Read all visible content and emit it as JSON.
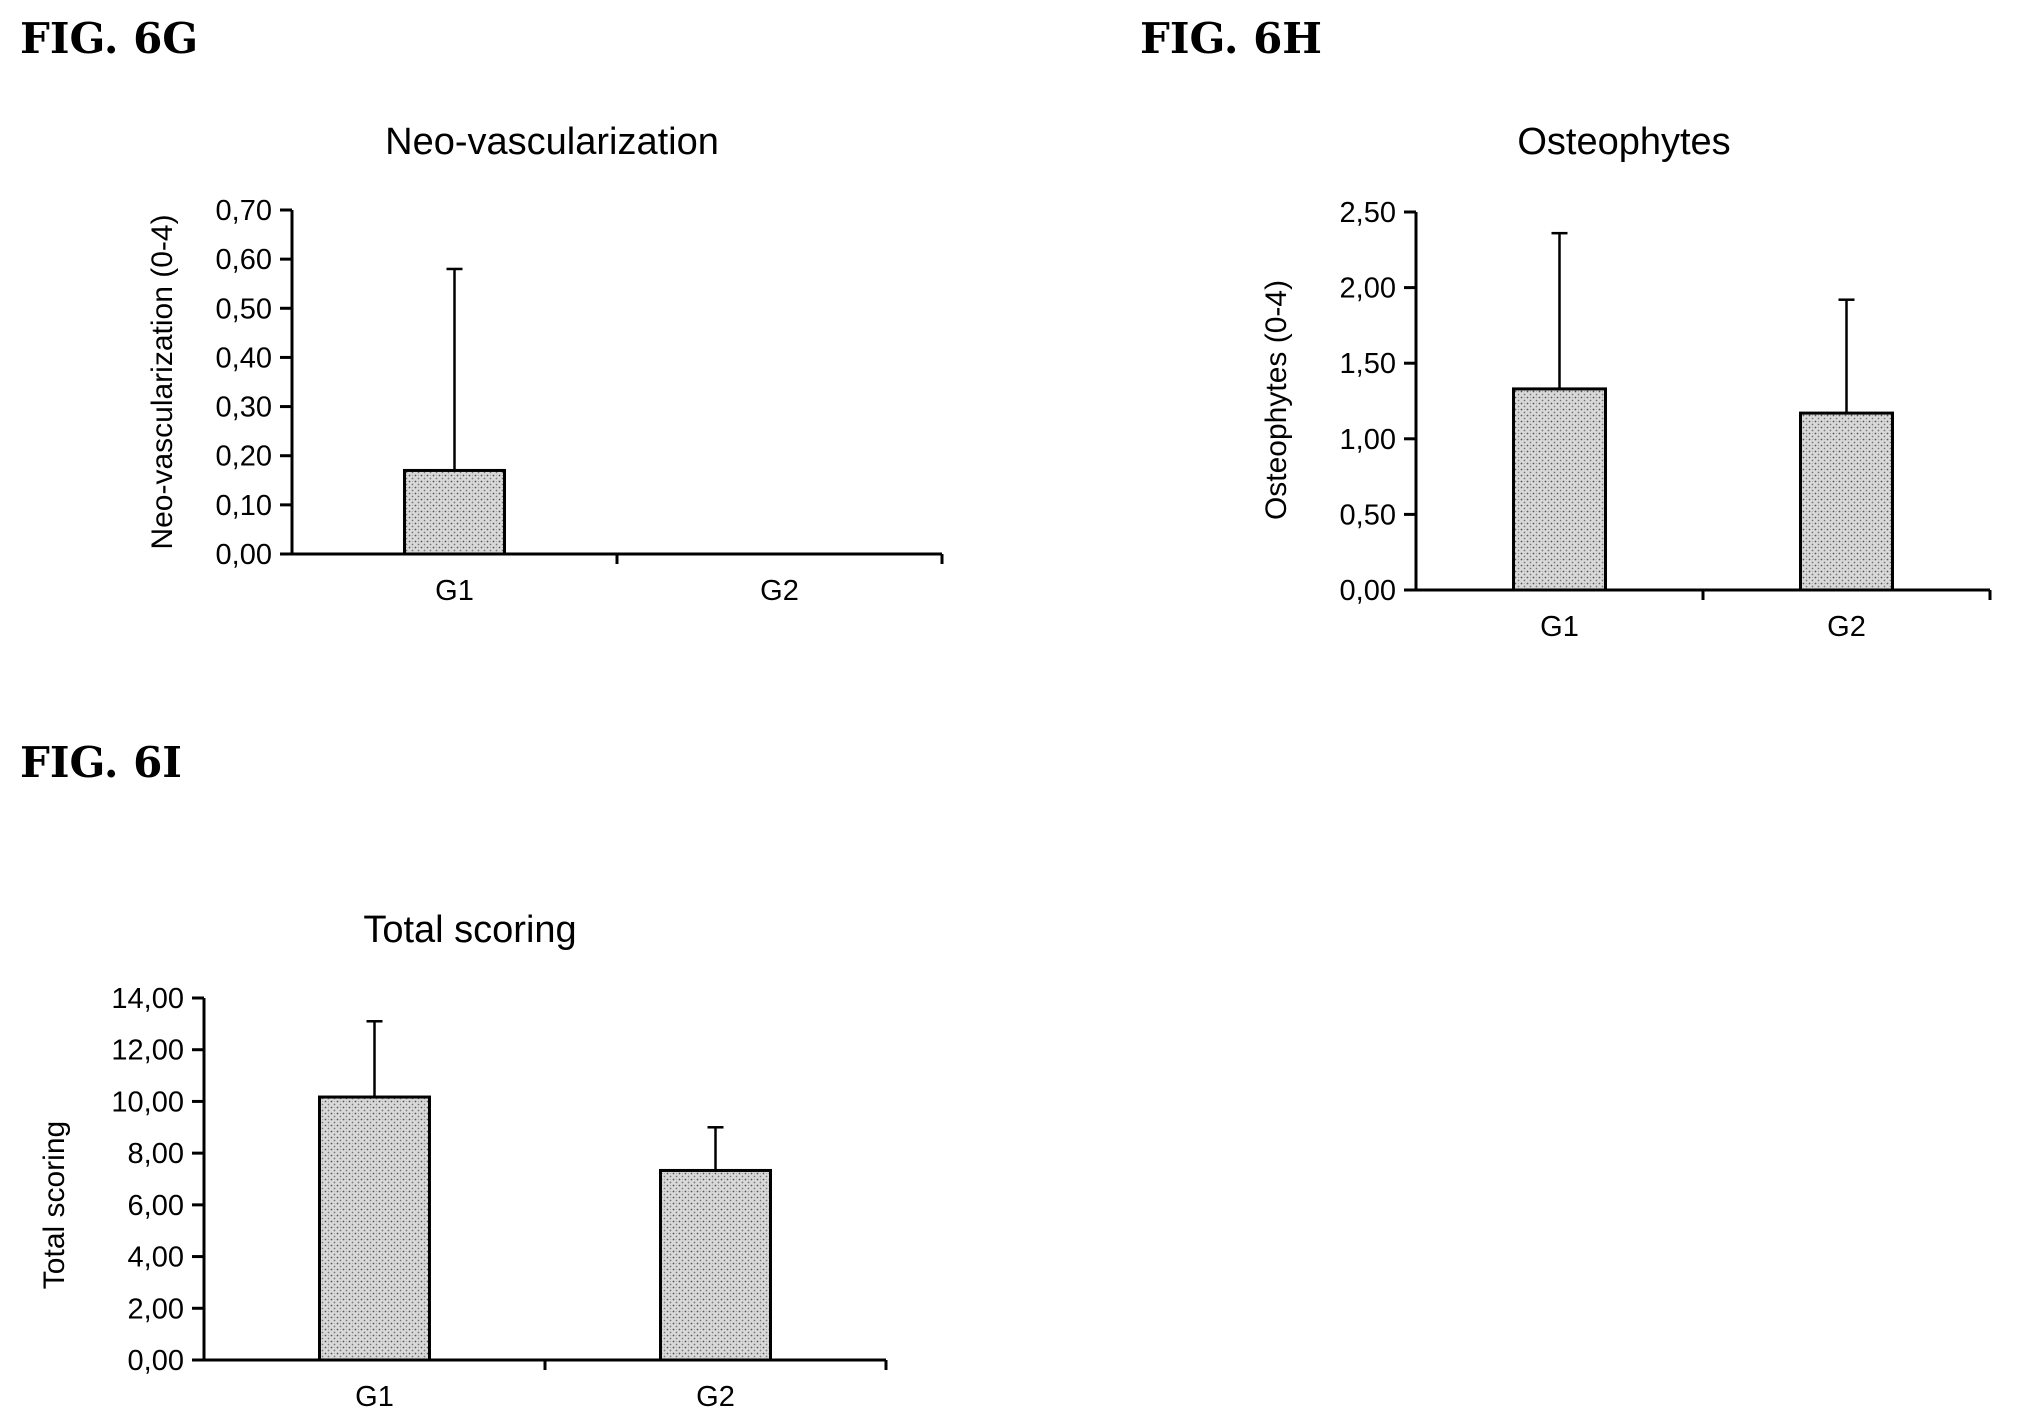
{
  "figures": {
    "g": {
      "label": "FIG. 6G"
    },
    "h": {
      "label": "FIG. 6H"
    },
    "i": {
      "label": "FIG. 6I"
    }
  },
  "chart_data": [
    {
      "type": "bar",
      "title": "Neo-vascularization",
      "ylabel": "Neo-vascularization (0-4)",
      "xlabel": "",
      "categories": [
        "G1",
        "G2"
      ],
      "values": [
        0.17,
        0.0
      ],
      "error_upper": [
        0.41,
        0.0
      ],
      "ylim": [
        0,
        0.7
      ],
      "yticks": [
        0,
        0.1,
        0.2,
        0.3,
        0.4,
        0.5,
        0.6,
        0.7
      ],
      "ytick_labels": [
        "0,00",
        "0,10",
        "0,20",
        "0,30",
        "0,40",
        "0,50",
        "0,60",
        "0,70"
      ],
      "grid": false,
      "bar_fill": "#c8c8c8"
    },
    {
      "type": "bar",
      "title": "Osteophytes",
      "ylabel": "Osteophytes (0-4)",
      "xlabel": "",
      "categories": [
        "G1",
        "G2"
      ],
      "values": [
        1.33,
        1.17
      ],
      "error_upper": [
        1.03,
        0.75
      ],
      "ylim": [
        0,
        2.5
      ],
      "yticks": [
        0,
        0.5,
        1.0,
        1.5,
        2.0,
        2.5
      ],
      "ytick_labels": [
        "0,00",
        "0,50",
        "1,00",
        "1,50",
        "2,00",
        "2,50"
      ],
      "grid": false,
      "bar_fill": "#c8c8c8"
    },
    {
      "type": "bar",
      "title": "Total scoring",
      "ylabel": "Total scoring",
      "xlabel": "",
      "categories": [
        "G1",
        "G2"
      ],
      "values": [
        10.17,
        7.33
      ],
      "error_upper": [
        2.93,
        1.67
      ],
      "ylim": [
        0,
        14
      ],
      "yticks": [
        0,
        2,
        4,
        6,
        8,
        10,
        12,
        14
      ],
      "ytick_labels": [
        "0,00",
        "2,00",
        "4,00",
        "6,00",
        "8,00",
        "10,00",
        "12,00",
        "14,00"
      ],
      "grid": false,
      "bar_fill": "#c8c8c8"
    }
  ]
}
